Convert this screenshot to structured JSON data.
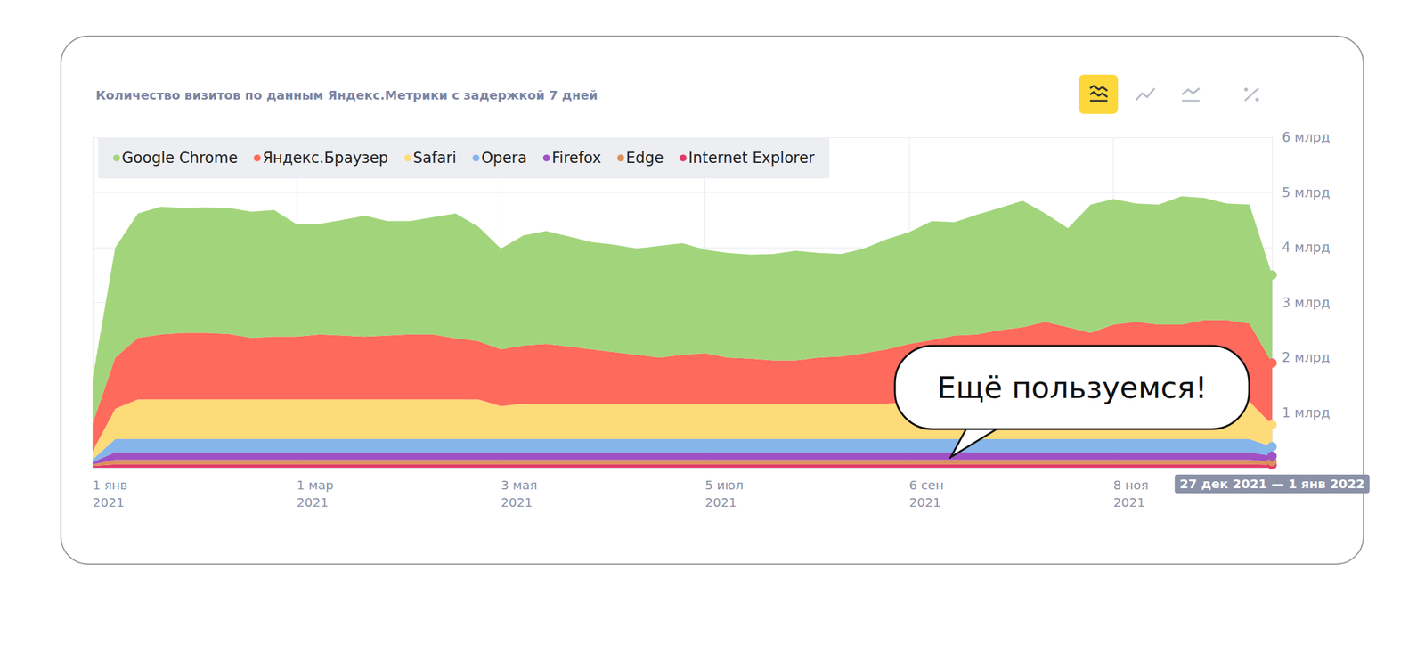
{
  "chart_data": {
    "type": "area",
    "title": "Количество визитов по данным Яндекс.Метрики с задержкой 7 дней",
    "annotation": "Ещё пользуемся!",
    "stacked": true,
    "grid": true,
    "legend": "top-left",
    "marker": "circle",
    "categories": [
      "1 янв\n2021",
      null,
      null,
      null,
      null,
      null,
      null,
      null,
      null,
      "1 мар\n2021",
      null,
      null,
      null,
      null,
      null,
      null,
      null,
      null,
      "3 мая\n2021",
      null,
      null,
      null,
      null,
      null,
      null,
      null,
      null,
      "5 июл\n2021",
      null,
      null,
      null,
      null,
      null,
      null,
      null,
      null,
      "6 сен\n2021",
      null,
      null,
      null,
      null,
      null,
      null,
      null,
      null,
      "8 ноя\n2021",
      null,
      null,
      null,
      null,
      null,
      null,
      "27 дек 2021 — 1 янв 2022"
    ],
    "ylim": [
      0,
      6
    ],
    "yticks": [
      {
        "value": 1,
        "label": "1 млрд"
      },
      {
        "value": 2,
        "label": "2 млрд"
      },
      {
        "value": 3,
        "label": "3 млрд"
      },
      {
        "value": 4,
        "label": "4 млрд"
      },
      {
        "value": 5,
        "label": "5 млрд"
      },
      {
        "value": 6,
        "label": "6 млрд"
      }
    ],
    "series": [
      {
        "name": "Google Chrome",
        "color": "#a2d57b",
        "values": [
          0.82,
          2.0,
          2.26,
          2.32,
          2.27,
          2.28,
          2.29,
          2.29,
          2.3,
          2.04,
          2.01,
          2.1,
          2.2,
          2.08,
          2.06,
          2.13,
          2.27,
          2.08,
          1.83,
          2.0,
          2.05,
          2.0,
          1.95,
          1.95,
          1.93,
          2.03,
          2.03,
          1.88,
          1.9,
          1.89,
          1.93,
          1.99,
          1.9,
          1.86,
          1.9,
          2.0,
          2.03,
          2.16,
          2.06,
          2.18,
          2.22,
          2.3,
          1.97,
          1.8,
          2.33,
          2.28,
          2.15,
          2.18,
          2.33,
          2.22,
          2.12,
          2.16,
          1.6
        ]
      },
      {
        "name": "Яндекс.Браузер",
        "color": "#fe6a5c",
        "values": [
          0.5,
          0.93,
          1.12,
          1.18,
          1.21,
          1.21,
          1.19,
          1.12,
          1.14,
          1.14,
          1.18,
          1.16,
          1.14,
          1.16,
          1.18,
          1.18,
          1.11,
          1.06,
          1.03,
          1.06,
          1.09,
          1.04,
          0.99,
          0.94,
          0.89,
          0.84,
          0.89,
          0.92,
          0.84,
          0.82,
          0.79,
          0.79,
          0.84,
          0.86,
          0.92,
          0.99,
          1.05,
          1.12,
          1.2,
          1.22,
          1.3,
          1.35,
          1.45,
          1.35,
          1.25,
          1.4,
          1.45,
          1.4,
          1.4,
          1.48,
          1.48,
          1.42,
          1.12
        ]
      },
      {
        "name": "Safari",
        "color": "#fedb79",
        "values": [
          0.15,
          0.55,
          0.72,
          0.72,
          0.72,
          0.72,
          0.72,
          0.72,
          0.72,
          0.72,
          0.72,
          0.72,
          0.72,
          0.72,
          0.72,
          0.72,
          0.72,
          0.72,
          0.6,
          0.64,
          0.64,
          0.64,
          0.64,
          0.64,
          0.64,
          0.64,
          0.64,
          0.64,
          0.64,
          0.64,
          0.64,
          0.64,
          0.64,
          0.64,
          0.64,
          0.64,
          0.68,
          0.68,
          0.68,
          0.68,
          0.68,
          0.68,
          0.68,
          0.68,
          0.68,
          0.68,
          0.68,
          0.68,
          0.68,
          0.68,
          0.68,
          0.68,
          0.4
        ]
      },
      {
        "name": "Opera",
        "color": "#86b5ea",
        "values": [
          0.05,
          0.24,
          0.24,
          0.24,
          0.24,
          0.24,
          0.24,
          0.24,
          0.24,
          0.24,
          0.24,
          0.24,
          0.24,
          0.24,
          0.24,
          0.24,
          0.24,
          0.24,
          0.24,
          0.24,
          0.24,
          0.24,
          0.24,
          0.24,
          0.24,
          0.24,
          0.24,
          0.24,
          0.24,
          0.24,
          0.24,
          0.24,
          0.24,
          0.24,
          0.24,
          0.24,
          0.24,
          0.24,
          0.24,
          0.24,
          0.24,
          0.24,
          0.24,
          0.24,
          0.24,
          0.24,
          0.24,
          0.24,
          0.24,
          0.24,
          0.24,
          0.24,
          0.17
        ]
      },
      {
        "name": "Firefox",
        "color": "#a052c4",
        "values": [
          0.04,
          0.14,
          0.14,
          0.14,
          0.14,
          0.14,
          0.14,
          0.14,
          0.14,
          0.14,
          0.14,
          0.14,
          0.14,
          0.14,
          0.14,
          0.14,
          0.14,
          0.14,
          0.14,
          0.14,
          0.14,
          0.14,
          0.14,
          0.14,
          0.14,
          0.14,
          0.14,
          0.14,
          0.14,
          0.14,
          0.14,
          0.14,
          0.14,
          0.14,
          0.14,
          0.14,
          0.14,
          0.14,
          0.14,
          0.14,
          0.14,
          0.14,
          0.14,
          0.14,
          0.14,
          0.14,
          0.14,
          0.14,
          0.14,
          0.14,
          0.14,
          0.14,
          0.1
        ]
      },
      {
        "name": "Edge",
        "color": "#dd915c",
        "values": [
          0.03,
          0.08,
          0.08,
          0.08,
          0.08,
          0.08,
          0.08,
          0.08,
          0.08,
          0.08,
          0.08,
          0.08,
          0.08,
          0.08,
          0.08,
          0.08,
          0.08,
          0.08,
          0.08,
          0.08,
          0.08,
          0.08,
          0.08,
          0.08,
          0.08,
          0.08,
          0.08,
          0.08,
          0.08,
          0.08,
          0.08,
          0.08,
          0.08,
          0.08,
          0.08,
          0.08,
          0.08,
          0.08,
          0.08,
          0.08,
          0.08,
          0.08,
          0.08,
          0.08,
          0.08,
          0.08,
          0.08,
          0.08,
          0.08,
          0.08,
          0.08,
          0.08,
          0.06
        ]
      },
      {
        "name": "Internet Explorer",
        "color": "#e33b6b",
        "values": [
          0.03,
          0.06,
          0.06,
          0.06,
          0.06,
          0.06,
          0.06,
          0.06,
          0.06,
          0.06,
          0.06,
          0.06,
          0.06,
          0.06,
          0.06,
          0.06,
          0.06,
          0.06,
          0.06,
          0.06,
          0.06,
          0.06,
          0.06,
          0.06,
          0.06,
          0.06,
          0.06,
          0.06,
          0.06,
          0.06,
          0.06,
          0.06,
          0.06,
          0.06,
          0.06,
          0.06,
          0.06,
          0.06,
          0.06,
          0.06,
          0.06,
          0.06,
          0.06,
          0.06,
          0.06,
          0.06,
          0.06,
          0.06,
          0.06,
          0.06,
          0.06,
          0.06,
          0.05
        ]
      }
    ]
  }
}
